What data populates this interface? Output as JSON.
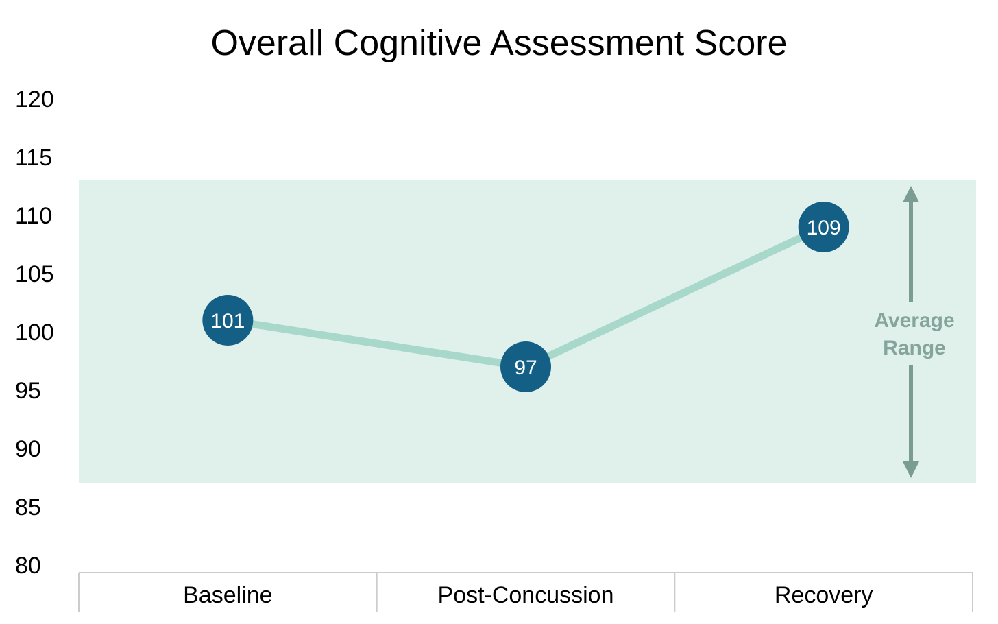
{
  "chart_data": {
    "type": "line",
    "title": "Overall Cognitive Assessment Score",
    "xlabel": "",
    "ylabel": "",
    "categories": [
      "Baseline",
      "Post-Concussion",
      "Recovery"
    ],
    "series": [
      {
        "values": [
          101,
          97,
          109
        ]
      }
    ],
    "ylim": [
      80,
      120
    ],
    "yticks": [
      80,
      85,
      90,
      95,
      100,
      105,
      110,
      115,
      120
    ],
    "grid": false,
    "legend": "none",
    "average_range": {
      "low": 87,
      "high": 113,
      "label_line1": "Average",
      "label_line2": "Range"
    },
    "colors": {
      "band": "#e0f1ec",
      "line": "#a8d8ca",
      "marker": "#145f85",
      "arrow": "#7a9c93",
      "range_text": "#85a59c",
      "axis": "#cccccc"
    }
  }
}
